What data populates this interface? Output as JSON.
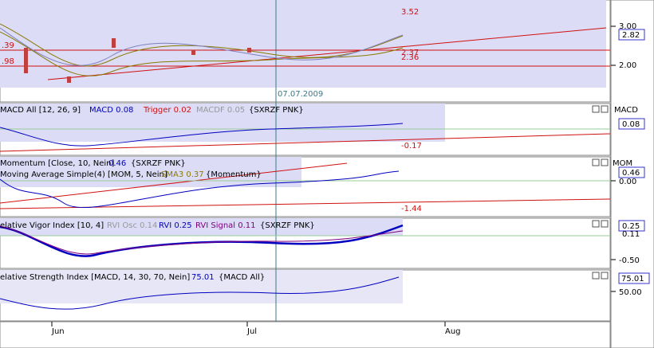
{
  "price_panel": {
    "level_top": "3.52",
    "levels_right": [
      ".39",
      ".98"
    ],
    "levels_near": [
      "2.37",
      "2.36"
    ],
    "axis": [
      "3.00",
      "2.00"
    ],
    "tag": "2.82",
    "date_marker": "07.07.2009"
  },
  "macd_panel": {
    "name": "MACD All [12, 26, 9]",
    "macd": "MACD 0.08",
    "trigger": "Trigger 0.02",
    "macdf": "MACDF 0.05",
    "source": "{SXRZF PNK}",
    "level": "-0.17",
    "selector": "MACD",
    "tag": "0.08"
  },
  "momentum_panel": {
    "name": "Momentum [Close, 10, Nein]",
    "value": "0.46",
    "source": "{SXRZF PNK}",
    "ma_name": "Moving Average Simple(4) [MOM, 5, Nein]",
    "sma": "SMA3 0.37",
    "ma_source": "{Momentum}",
    "level": "-1.44",
    "selector": "MOM",
    "tag": "0.46",
    "axis": "0.00"
  },
  "rvi_panel": {
    "name": "elative Vigor Index [10, 4]",
    "osc": "RVI Osc 0.14",
    "rvi": "RVI 0.25",
    "signal": "RVI Signal 0.11",
    "source": "{SXRZF PNK}",
    "tag": "0.25",
    "tag2": "0.11",
    "axis": "-0.50"
  },
  "rsi_panel": {
    "name": "elative Strength Index [MACD, 14, 30, 70, Nein]",
    "value": "75.01",
    "source": "{MACD All}",
    "tag": "75.01",
    "axis": "50.00"
  },
  "x_axis": [
    "Jun",
    "Jul",
    "Aug"
  ]
}
